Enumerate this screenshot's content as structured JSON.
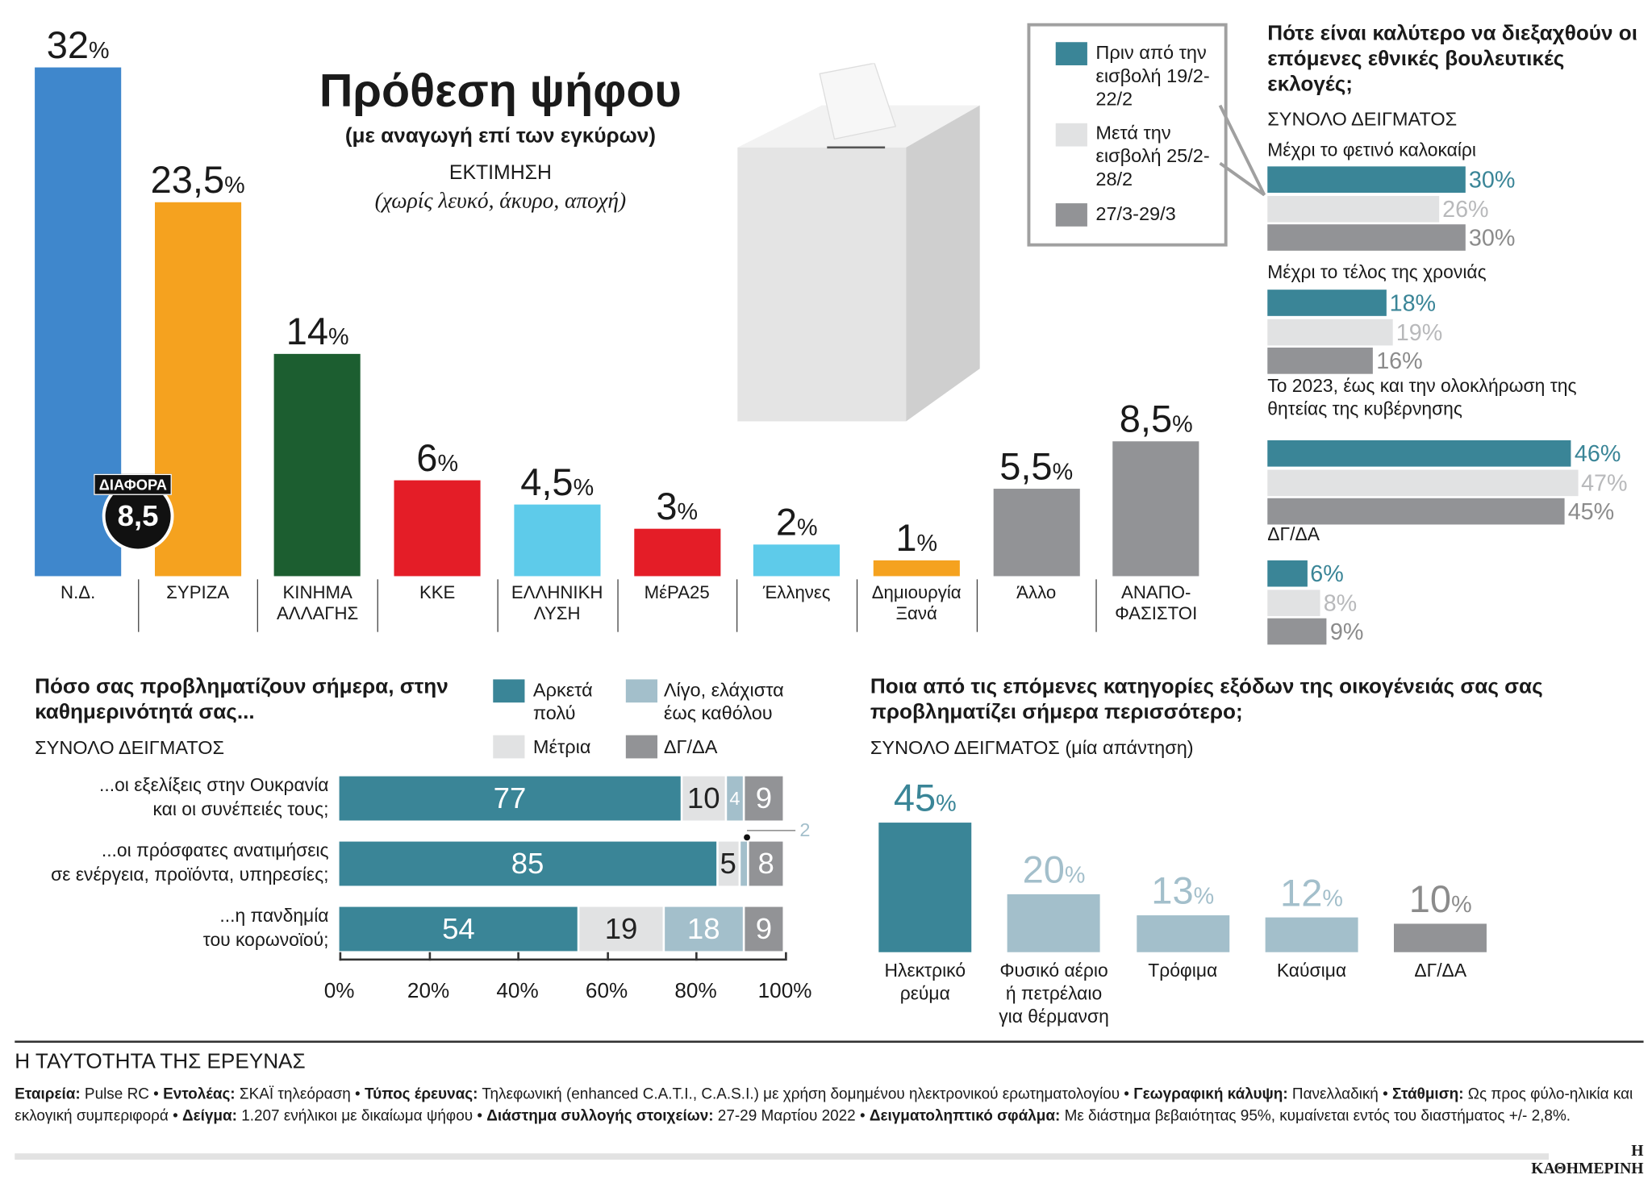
{
  "vote_chart": {
    "title": "Πρόθεση ψήφου",
    "subtitle": "(με αναγωγή επί των εγκύρων)",
    "estimate": "ΕΚΤΙΜΗΣΗ",
    "note": "(χωρίς λευκό, άκυρο, αποχή)",
    "difference_label": "ΔΙΑΦΟΡΑ",
    "difference_value": "8,5"
  },
  "right_panel": {
    "title": "Πότε είναι καλύτερο να διεξαχθούν οι επόμενες εθνικές βουλευτικές εκλογές;",
    "subtitle": "ΣΥΝΟΛΟ ΔΕΙΓΜΑΤΟΣ",
    "legend": [
      "Πριν από την εισβολή 19/2-22/2",
      "Μετά την εισβολή 25/2-28/2",
      "27/3-29/3"
    ]
  },
  "concern_panel": {
    "title": "Πόσο σας προβληματίζουν σήμερα, στην καθημερινότητά σας...",
    "subtitle": "ΣΥΝΟΛΟ ΔΕΙΓΜΑΤΟΣ",
    "legend": [
      "Αρκετά πολύ",
      "Λίγο, ελάχιστα έως καθόλου",
      "Μέτρια",
      "ΔΓ/ΔΑ"
    ]
  },
  "expense_panel": {
    "title": "Ποια από τις επόμενες κατηγορίες εξόδων της οικογένειάς σας σας προβληματίζει σήμερα περισσότερο;",
    "subtitle": "ΣΥΝΟΛΟ ΔΕΙΓΜΑΤΟΣ (μία απάντηση)"
  },
  "chart_data": [
    {
      "type": "bar",
      "title": "Πρόθεση ψήφου",
      "categories": [
        "Ν.Δ.",
        "ΣΥΡΙΖΑ",
        "ΚΙΝΗΜΑ ΑΛΛΑΓΗΣ",
        "ΚΚΕ",
        "ΕΛΛΗΝΙΚΗ ΛΥΣΗ",
        "ΜέΡΑ25",
        "Έλληνες",
        "Δημιουργία Ξανά",
        "Άλλο",
        "ΑΝΑΠΟ- ΦΑΣΙΣΤΟΙ"
      ],
      "labels": [
        "32",
        "23,5",
        "14",
        "6",
        "4,5",
        "3",
        "2",
        "1",
        "5,5",
        "8,5"
      ],
      "values": [
        32,
        23.5,
        14,
        6,
        4.5,
        3,
        2,
        1,
        5.5,
        8.5
      ],
      "colors": [
        "#3f87cc",
        "#f5a21f",
        "#1c5e30",
        "#e41d27",
        "#5ecbea",
        "#e41d27",
        "#5ecbea",
        "#f5a21f",
        "#929396",
        "#929396"
      ],
      "unit": "%"
    },
    {
      "type": "bar",
      "orientation": "horizontal",
      "title": "Πότε είναι καλύτερο να διεξαχθούν οι επόμενες εθνικές βουλευτικές εκλογές;",
      "categories": [
        "Μέχρι το φετινό καλοκαίρι",
        "Μέχρι το τέλος της χρονιάς",
        "Το 2023, έως και την ολοκλήρωση της θητείας της κυβέρνησης",
        "ΔΓ/ΔΑ"
      ],
      "series": [
        {
          "name": "Πριν από την εισβολή 19/2-22/2",
          "values": [
            30,
            18,
            46,
            6
          ],
          "color": "#3a8597"
        },
        {
          "name": "Μετά την εισβολή 25/2-28/2",
          "values": [
            26,
            19,
            47,
            8
          ],
          "color": "#e1e2e3"
        },
        {
          "name": "27/3-29/3",
          "values": [
            30,
            16,
            45,
            9
          ],
          "color": "#929396"
        }
      ],
      "unit": "%"
    },
    {
      "type": "bar",
      "orientation": "horizontal",
      "stacked": true,
      "title": "Πόσο σας προβληματίζουν σήμερα, στην καθημερινότητά σας...",
      "categories": [
        "...οι εξελίξεις στην Ουκρανία και οι συνέπειές τους;",
        "...οι πρόσφατες ανατιμήσεις σε ενέργεια, προϊόντα, υπηρεσίες;",
        "...η πανδημία του κορωνοϊού;"
      ],
      "series": [
        {
          "name": "Αρκετά πολύ",
          "values": [
            77,
            85,
            54
          ],
          "color": "#3a8597"
        },
        {
          "name": "Μέτρια",
          "values": [
            10,
            5,
            19
          ],
          "color": "#e1e2e3"
        },
        {
          "name": "Λίγο, ελάχιστα έως καθόλου",
          "values": [
            4,
            2,
            18
          ],
          "color": "#a3bfcb"
        },
        {
          "name": "ΔΓ/ΔΑ",
          "values": [
            9,
            8,
            9
          ],
          "color": "#929396"
        }
      ],
      "xticks": [
        "0%",
        "20%",
        "40%",
        "60%",
        "80%",
        "100%"
      ],
      "xlim": [
        0,
        100
      ]
    },
    {
      "type": "bar",
      "title": "Ποια από τις επόμενες κατηγορίες εξόδων της οικογένειάς σας σας προβληματίζει σήμερα περισσότερο;",
      "categories": [
        "Ηλεκτρικό ρεύμα",
        "Φυσικό αέριο ή πετρέλαιο για θέρμανση",
        "Τρόφιμα",
        "Καύσιμα",
        "ΔΓ/ΔΑ"
      ],
      "values": [
        45,
        20,
        13,
        12,
        10
      ],
      "colors": [
        "#3a8597",
        "#a3bfcb",
        "#a3bfcb",
        "#a3bfcb",
        "#929396"
      ],
      "label_colors": [
        "#3a8597",
        "#a3bfcb",
        "#a3bfcb",
        "#a3bfcb",
        "#8b8b8b"
      ],
      "unit": "%"
    }
  ],
  "footer": {
    "heading": "Η ΤΑΥΤΟΤΗΤΑ ΤΗΣ ΕΡΕΥΝΑΣ",
    "items": [
      [
        "Εταιρεία:",
        "Pulse RC"
      ],
      [
        "Εντολέας:",
        "ΣΚΑΪ τηλεόραση"
      ],
      [
        "Τύπος έρευνας:",
        "Τηλεφωνική (enhanced C.A.T.I., C.A.S.I.) με χρήση δομημένου ηλεκτρονικού ερωτηματολογίου"
      ],
      [
        "Γεωγραφική κάλυψη:",
        "Πανελλαδική"
      ],
      [
        "Στάθμιση:",
        "Ως προς φύλο-ηλικία και εκλογική συμπεριφορά"
      ],
      [
        "Δείγμα:",
        "1.207 ενήλικοι με δικαίωμα ψήφου"
      ],
      [
        "Διάστημα συλλογής στοιχείων:",
        "27-29 Μαρτίου 2022"
      ],
      [
        "Δειγματοληπτικό σφάλμα:",
        "Με διάστημα βεβαιότητας 95%, κυμαίνεται εντός του διαστήματος +/- 2,8%."
      ]
    ],
    "brand": "Η ΚΑΘΗΜΕΡΙΝΗ"
  }
}
